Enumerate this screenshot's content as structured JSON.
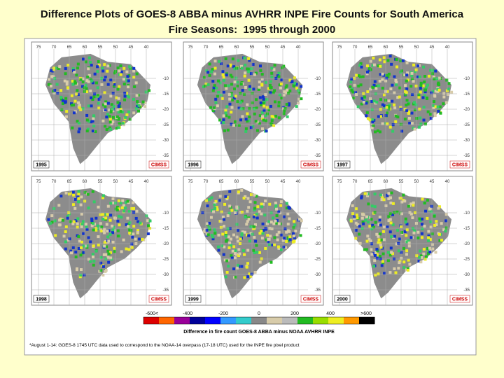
{
  "header": {
    "title_line1": "Difference Plots of GOES-8 ABBA minus AVHRR INPE Fire Counts for South America",
    "title_line2": "Fire Seasons:  1995 through 2000"
  },
  "figure": {
    "panels": [
      {
        "year": "1995",
        "logo": "CIMSS"
      },
      {
        "year": "1996",
        "logo": "CIMSS"
      },
      {
        "year": "1997",
        "logo": "CIMSS"
      },
      {
        "year": "1998",
        "logo": "CIMSS"
      },
      {
        "year": "1999",
        "logo": "CIMSS"
      },
      {
        "year": "2000",
        "logo": "CIMSS"
      }
    ],
    "longitude_labels": [
      "75",
      "70",
      "65",
      "60",
      "55",
      "50",
      "45",
      "40"
    ],
    "latitude_labels": [
      "-10",
      "-15",
      "-20",
      "-25",
      "-30",
      "-35"
    ],
    "colorbar": {
      "labels": [
        "-600<",
        "-400",
        "-200",
        "0",
        "200",
        "400",
        ">600"
      ],
      "caption": "Difference in fire count GOES-8 ABBA minus NOAA AVHRR INPE"
    },
    "footnote": "*August 1-14:  GOES-8 1745 UTC data used to correspond to the NOAA-14 overpass (17-18 UTC) used for the INPE fire pixel product"
  }
}
